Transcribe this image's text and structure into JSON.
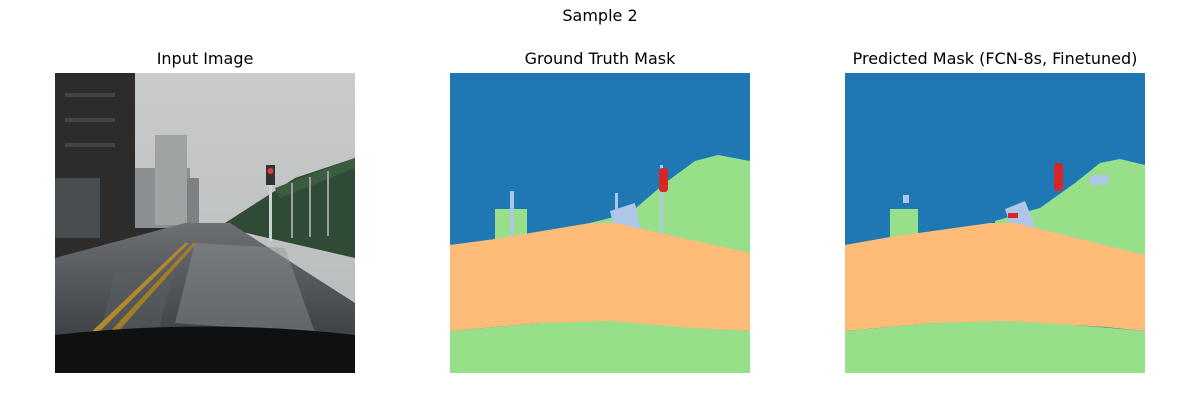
{
  "figure": {
    "suptitle": "Sample 2",
    "panels": [
      {
        "title": "Input Image"
      },
      {
        "title": "Ground Truth Mask"
      },
      {
        "title": "Predicted Mask (FCN-8s, Finetuned)"
      }
    ]
  },
  "colors": {
    "sky": "#1f77b4",
    "road": "#ffbb78",
    "vegetation": "#98df8a",
    "pole": "#aec7e8",
    "traffic_light": "#d62728",
    "background": "#ffffff"
  }
}
